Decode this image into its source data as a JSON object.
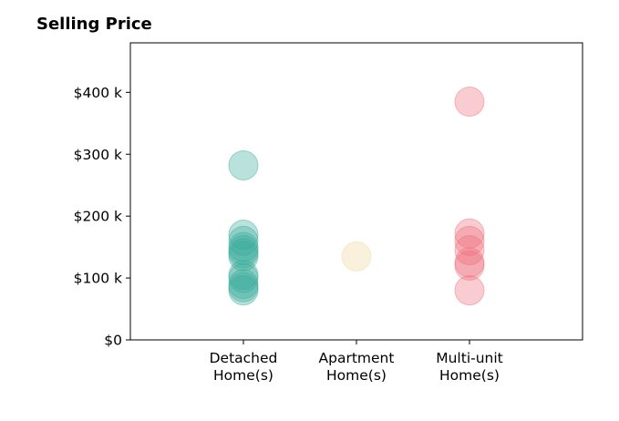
{
  "chart_data": {
    "type": "scatter",
    "title": "Selling Price",
    "xlabel": "",
    "ylabel": "",
    "categories": [
      [
        "Detached",
        "Home(s)"
      ],
      [
        "Apartment",
        "Home(s)"
      ],
      [
        "Multi-unit",
        "Home(s)"
      ]
    ],
    "xlim": [
      -1,
      3
    ],
    "ylim": [
      0,
      480000
    ],
    "yticks": [
      0,
      100000,
      200000,
      300000,
      400000
    ],
    "ytick_labels": [
      "$0",
      "$100 k",
      "$200 k",
      "$300 k",
      "$400 k"
    ],
    "grid": false,
    "series": [
      {
        "category_index": 0,
        "color": "#3aab9c",
        "values": [
          282000,
          170000,
          160000,
          150000,
          145000,
          140000,
          135000,
          105000,
          100000,
          90000,
          85000,
          80000
        ]
      },
      {
        "category_index": 1,
        "color": "#f1d79a",
        "values": [
          135000
        ]
      },
      {
        "category_index": 2,
        "color": "#ee6e7c",
        "values": [
          385000,
          172000,
          160000,
          145000,
          125000,
          120000,
          80000
        ]
      }
    ]
  }
}
